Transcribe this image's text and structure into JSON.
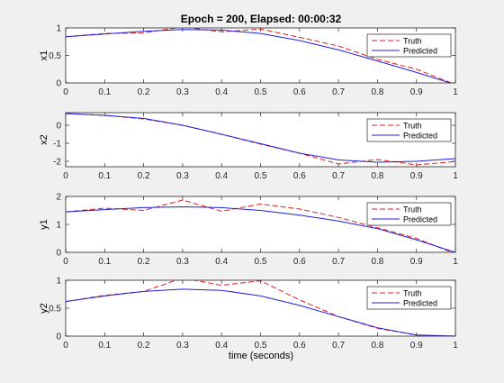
{
  "figure": {
    "title": "Epoch = 200, Elapsed: 00:00:32",
    "xlabel": "time (seconds)"
  },
  "colors": {
    "truth": "#e41a1c",
    "predicted": "#1f1fe0",
    "axes_bg": "#ffffff",
    "figure_bg": "#f0f0f0"
  },
  "chart_data": [
    {
      "type": "line",
      "ylabel": "x1",
      "xlim": [
        0,
        1
      ],
      "ylim": [
        0,
        1
      ],
      "xticks": [
        "0",
        "0.1",
        "0.2",
        "0.3",
        "0.4",
        "0.5",
        "0.6",
        "0.7",
        "0.8",
        "0.9",
        "1"
      ],
      "yticks": [
        {
          "v": 0,
          "label": "0"
        },
        {
          "v": 0.5,
          "label": "0.5"
        },
        {
          "v": 1,
          "label": "1"
        }
      ],
      "legend": "top-right",
      "series": [
        {
          "name": "Truth",
          "style": "dashed",
          "x": [
            0,
            0.1,
            0.2,
            0.3,
            0.4,
            0.5,
            0.6,
            0.7,
            0.8,
            0.9,
            1
          ],
          "y": [
            0.84,
            0.9,
            0.91,
            1.02,
            0.93,
            0.98,
            0.83,
            0.67,
            0.43,
            0.25,
            -0.03
          ]
        },
        {
          "name": "Predicted",
          "style": "solid",
          "x": [
            0,
            0.1,
            0.2,
            0.3,
            0.4,
            0.5,
            0.6,
            0.7,
            0.8,
            0.9,
            1
          ],
          "y": [
            0.84,
            0.89,
            0.94,
            0.97,
            0.96,
            0.9,
            0.77,
            0.6,
            0.4,
            0.19,
            -0.03
          ]
        }
      ]
    },
    {
      "type": "line",
      "ylabel": "x2",
      "xlim": [
        0,
        1
      ],
      "ylim": [
        -2.3,
        0.7
      ],
      "xticks": [
        "0",
        "0.1",
        "0.2",
        "0.3",
        "0.4",
        "0.5",
        "0.6",
        "0.7",
        "0.8",
        "0.9",
        "1"
      ],
      "yticks": [
        {
          "v": 0,
          "label": "0"
        },
        {
          "v": -1,
          "label": "-1"
        },
        {
          "v": -2,
          "label": "-2"
        }
      ],
      "legend": "top-right",
      "series": [
        {
          "name": "Truth",
          "style": "dashed",
          "x": [
            0,
            0.1,
            0.2,
            0.3,
            0.4,
            0.5,
            0.6,
            0.7,
            0.8,
            0.9,
            1
          ],
          "y": [
            0.65,
            0.55,
            0.35,
            0.0,
            -0.5,
            -1.05,
            -1.55,
            -2.15,
            -1.9,
            -2.2,
            -2.02
          ]
        },
        {
          "name": "Predicted",
          "style": "solid",
          "x": [
            0,
            0.1,
            0.2,
            0.3,
            0.4,
            0.5,
            0.6,
            0.7,
            0.8,
            0.9,
            1
          ],
          "y": [
            0.65,
            0.55,
            0.38,
            0.0,
            -0.5,
            -1.02,
            -1.55,
            -1.92,
            -2.05,
            -2.0,
            -1.85
          ]
        }
      ]
    },
    {
      "type": "line",
      "ylabel": "y1",
      "xlim": [
        0,
        1
      ],
      "ylim": [
        0,
        2
      ],
      "xticks": [
        "0",
        "0.1",
        "0.2",
        "0.3",
        "0.4",
        "0.5",
        "0.6",
        "0.7",
        "0.8",
        "0.9",
        "1"
      ],
      "yticks": [
        {
          "v": 0,
          "label": "0"
        },
        {
          "v": 1,
          "label": "1"
        },
        {
          "v": 2,
          "label": "2"
        }
      ],
      "legend": "top-right",
      "series": [
        {
          "name": "Truth",
          "style": "dashed",
          "x": [
            0,
            0.1,
            0.2,
            0.3,
            0.4,
            0.5,
            0.6,
            0.7,
            0.8,
            0.9,
            1
          ],
          "y": [
            1.45,
            1.58,
            1.5,
            1.87,
            1.47,
            1.73,
            1.55,
            1.25,
            0.88,
            0.5,
            -0.05
          ]
        },
        {
          "name": "Predicted",
          "style": "solid",
          "x": [
            0,
            0.1,
            0.2,
            0.3,
            0.4,
            0.5,
            0.6,
            0.7,
            0.8,
            0.9,
            1
          ],
          "y": [
            1.45,
            1.53,
            1.6,
            1.63,
            1.6,
            1.5,
            1.33,
            1.12,
            0.85,
            0.45,
            0.0
          ]
        }
      ]
    },
    {
      "type": "line",
      "ylabel": "y2",
      "xlim": [
        0,
        1
      ],
      "ylim": [
        0,
        1
      ],
      "xticks": [
        "0",
        "0.1",
        "0.2",
        "0.3",
        "0.4",
        "0.5",
        "0.6",
        "0.7",
        "0.8",
        "0.9",
        "1"
      ],
      "yticks": [
        {
          "v": 0,
          "label": "0"
        },
        {
          "v": 0.5,
          "label": "0.5"
        },
        {
          "v": 1,
          "label": "1"
        }
      ],
      "legend": "top-right",
      "series": [
        {
          "name": "Truth",
          "style": "dashed",
          "x": [
            0,
            0.1,
            0.2,
            0.3,
            0.4,
            0.5,
            0.6,
            0.7,
            0.8,
            0.9,
            1
          ],
          "y": [
            0.62,
            0.73,
            0.8,
            1.04,
            0.91,
            0.99,
            0.65,
            0.35,
            0.14,
            0.02,
            0.0
          ]
        },
        {
          "name": "Predicted",
          "style": "solid",
          "x": [
            0,
            0.1,
            0.2,
            0.3,
            0.4,
            0.5,
            0.6,
            0.7,
            0.8,
            0.9,
            1
          ],
          "y": [
            0.62,
            0.72,
            0.8,
            0.84,
            0.82,
            0.72,
            0.55,
            0.35,
            0.15,
            0.02,
            0.0
          ]
        }
      ]
    }
  ]
}
